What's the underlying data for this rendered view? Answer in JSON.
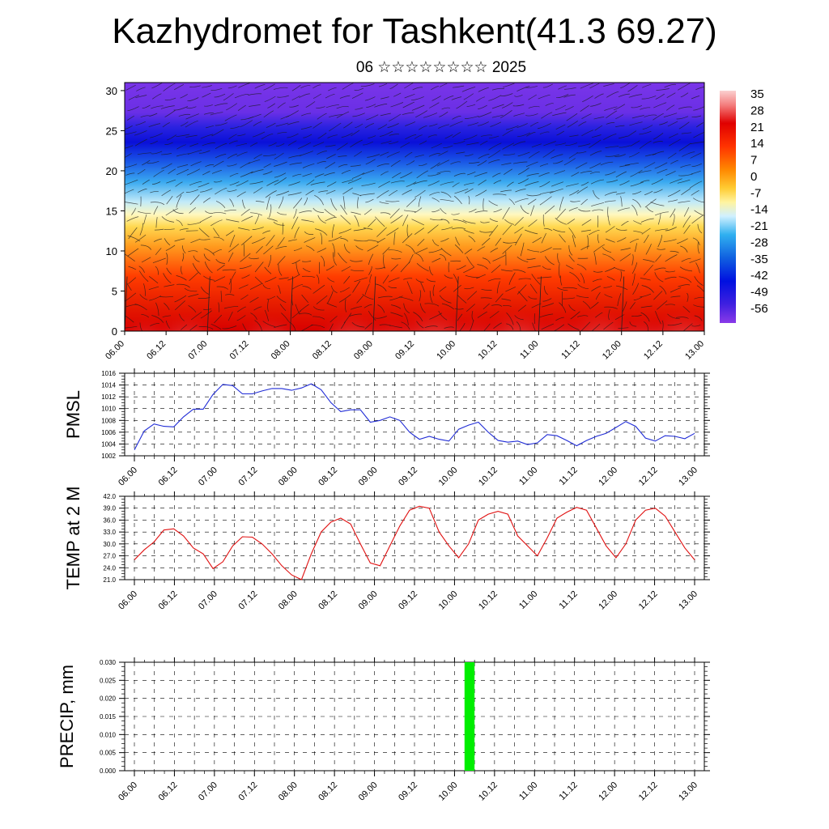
{
  "header": {
    "title": "Kazhydromet for Tashkent(41.3 69.27)",
    "subtitle": "06 ☆☆☆☆☆☆☆☆ 2025"
  },
  "colors": {
    "pmsl_line": "#1f2bd6",
    "temp_line": "#e01010",
    "precip_bar": "#00ee00",
    "grid": "#000000"
  },
  "x_tick_labels": [
    "06.00",
    "06.12",
    "07.00",
    "07.12",
    "08.00",
    "08.12",
    "09.00",
    "09.12",
    "10.00",
    "10.12",
    "11.00",
    "11.12",
    "12.00",
    "12.12",
    "13.00"
  ],
  "chart_data": [
    {
      "type": "heatmap",
      "y_ticks": [
        "0",
        "5",
        "10",
        "15",
        "20",
        "25",
        "30"
      ],
      "ylim": [
        0,
        31
      ],
      "colorbar_labels": [
        "35",
        "28",
        "21",
        "14",
        "7",
        "0",
        "-7",
        "-14",
        "-21",
        "-28",
        "-35",
        "-42",
        "-49",
        "-56"
      ],
      "colorbar_range": [
        -60,
        38
      ],
      "overlay": "wind-streamlines",
      "surface_max_by_halfday": [
        24,
        30,
        22,
        28,
        21,
        33,
        25,
        37,
        26,
        36,
        26,
        37,
        27,
        36,
        26
      ]
    },
    {
      "type": "line",
      "ylabel": "PMSL",
      "ylim": [
        1002,
        1016
      ],
      "y_ticks": [
        "1002",
        "1004",
        "1006",
        "1008",
        "1010",
        "1012",
        "1014",
        "1016"
      ],
      "values": [
        1003.0,
        1006.2,
        1007.4,
        1007.0,
        1006.9,
        1008.6,
        1009.9,
        1009.9,
        1012.4,
        1014.1,
        1013.9,
        1012.5,
        1012.5,
        1013.0,
        1013.4,
        1013.4,
        1013.1,
        1013.5,
        1014.2,
        1013.2,
        1011.0,
        1009.5,
        1009.8,
        1009.8,
        1007.7,
        1008.0,
        1008.6,
        1008.0,
        1006.0,
        1004.8,
        1005.3,
        1004.8,
        1004.5,
        1006.5,
        1007.2,
        1007.7,
        1006.0,
        1004.6,
        1004.3,
        1004.5,
        1003.9,
        1004.2,
        1005.6,
        1005.4,
        1004.6,
        1003.7,
        1004.6,
        1005.3,
        1005.8,
        1006.8,
        1007.8,
        1007.0,
        1005.0,
        1004.5,
        1005.4,
        1005.3,
        1004.9,
        1005.8
      ]
    },
    {
      "type": "line",
      "ylabel": "TEMP at 2 M",
      "ylim": [
        21.0,
        42.0
      ],
      "y_ticks": [
        "21.0",
        "24.0",
        "27.0",
        "30.0",
        "33.0",
        "36.0",
        "39.0",
        "42.0"
      ],
      "values": [
        26.0,
        28.5,
        30.5,
        33.5,
        33.8,
        32.0,
        29.0,
        27.5,
        23.8,
        25.5,
        29.5,
        31.8,
        31.7,
        30.0,
        27.5,
        24.5,
        22.2,
        21.0,
        27.5,
        33.0,
        35.5,
        36.5,
        35.0,
        30.0,
        25.2,
        24.5,
        29.5,
        34.5,
        38.5,
        39.5,
        39.0,
        33.0,
        29.5,
        26.5,
        30.0,
        36.0,
        37.5,
        38.2,
        37.5,
        32.0,
        29.5,
        27.0,
        31.5,
        36.5,
        38.0,
        39.2,
        38.5,
        34.0,
        29.5,
        26.5,
        30.0,
        36.0,
        38.5,
        39.0,
        37.0,
        33.0,
        29.0,
        26.0
      ]
    },
    {
      "type": "bar",
      "ylabel": "PRECIP, mm",
      "ylim": [
        0.0,
        0.03
      ],
      "y_ticks": [
        "0.000",
        "0.005",
        "0.010",
        "0.015",
        "0.020",
        "0.025",
        "0.030"
      ],
      "bars": [
        {
          "x_hours": 99,
          "width_hours": 3,
          "value": 0.03
        }
      ]
    }
  ]
}
